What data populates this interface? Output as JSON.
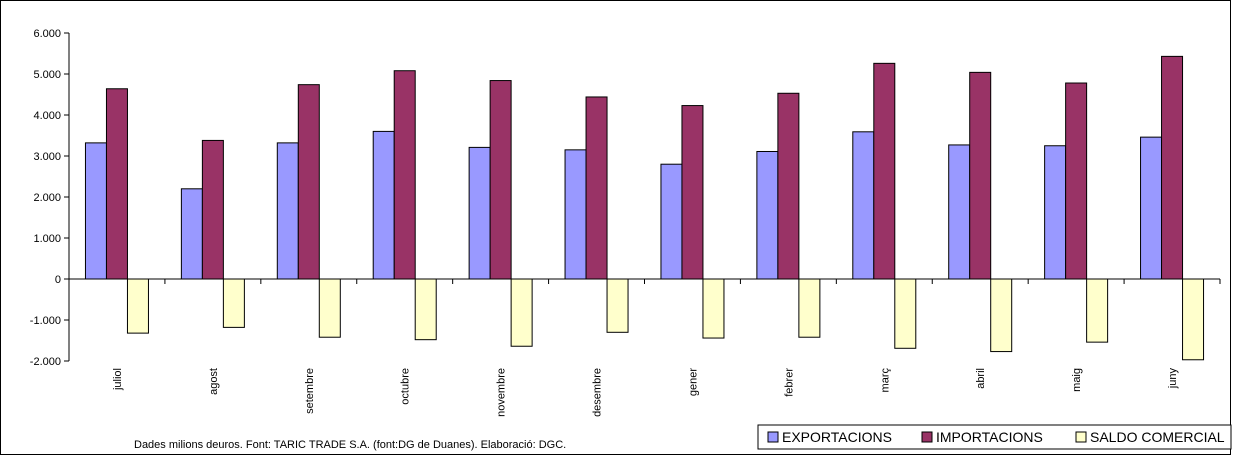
{
  "chart_data": {
    "type": "bar",
    "title": "",
    "xlabel": "",
    "ylabel": "",
    "categories": [
      "juliol",
      "agost",
      "setembre",
      "octubre",
      "novembre",
      "desembre",
      "gener",
      "febrer",
      "març",
      "abril",
      "maig",
      "juny"
    ],
    "series": [
      {
        "name": "EXPORTACIONS",
        "color": "#9999ff",
        "values": [
          3320,
          2200,
          3320,
          3600,
          3210,
          3150,
          2800,
          3110,
          3590,
          3270,
          3250,
          3460
        ]
      },
      {
        "name": "IMPORTACIONS",
        "color": "#993366",
        "values": [
          4640,
          3380,
          4740,
          5080,
          4840,
          4440,
          4230,
          4530,
          5260,
          5040,
          4780,
          5430
        ]
      },
      {
        "name": "SALDO COMERCIAL",
        "color": "#ffffcc",
        "values": [
          -1320,
          -1180,
          -1420,
          -1480,
          -1640,
          -1300,
          -1440,
          -1420,
          -1690,
          -1770,
          -1540,
          -1970
        ]
      }
    ],
    "ylim": [
      -2000,
      6000
    ],
    "yticks": [
      -2000,
      -1000,
      0,
      1000,
      2000,
      3000,
      4000,
      5000,
      6000
    ],
    "ytick_labels": [
      "-2.000",
      "-1.000",
      "0",
      "1.000",
      "2.000",
      "3.000",
      "4.000",
      "5.000",
      "6.000"
    ],
    "grid": false,
    "legend_position": "bottom-right"
  },
  "note": "Dades milions deuros. Font: TARIC TRADE S.A. (font:DG de Duanes). Elaboració: DGC."
}
